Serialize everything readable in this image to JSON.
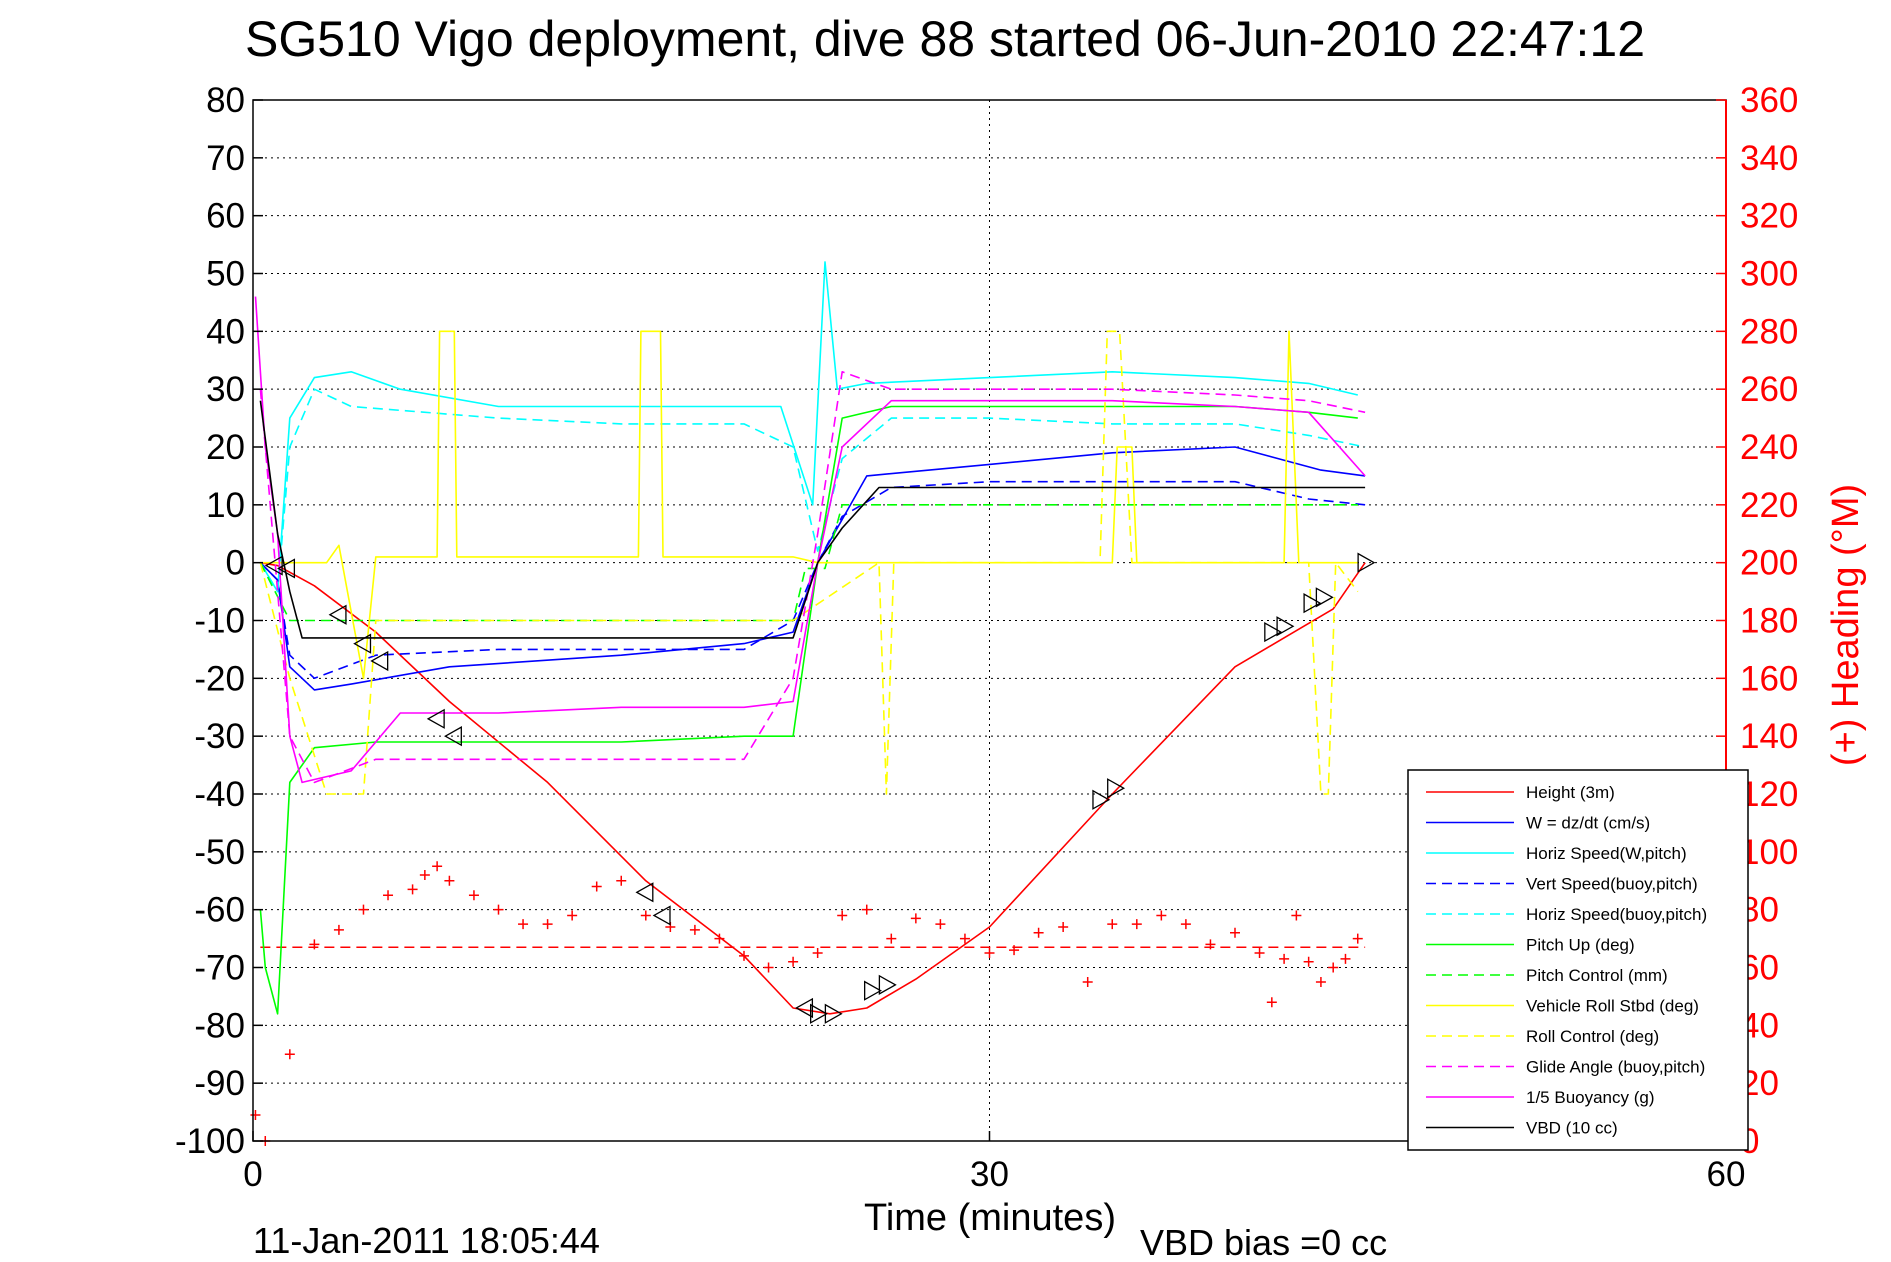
{
  "chart_data": {
    "type": "line",
    "title": "SG510 Vigo deployment, dive 88 started 06-Jun-2010 22:47:12",
    "xlabel": "Time (minutes)",
    "ylabel": "",
    "ylabel_right": "(+) Heading (°M)",
    "xlim": [
      0,
      60
    ],
    "ylim": [
      -100,
      80
    ],
    "ylim_right": [
      0,
      360
    ],
    "x_ticks": [
      "0",
      "30",
      "60"
    ],
    "y_ticks": [
      "80",
      "70",
      "60",
      "50",
      "40",
      "30",
      "20",
      "10",
      "0",
      "-10",
      "-20",
      "-30",
      "-40",
      "-50",
      "-60",
      "-70",
      "-80",
      "-90",
      "-100"
    ],
    "y_ticks_right": [
      "360",
      "340",
      "320",
      "300",
      "280",
      "260",
      "240",
      "220",
      "200",
      "180",
      "160",
      "140",
      "120",
      "100",
      "80",
      "60",
      "40",
      "20",
      "0"
    ],
    "grid": true,
    "legend_position": "bottom-right",
    "footer_left": "11-Jan-2011 18:05:44",
    "footer_right": "VBD bias =0 cc",
    "series": [
      {
        "name": "Height (3m)",
        "color": "#ff0000",
        "dash": "solid",
        "x": [
          0.3,
          1.0,
          2.5,
          5.0,
          8.0,
          12.0,
          16.0,
          20.0,
          22.0,
          23.5,
          25.0,
          27.0,
          30.0,
          35.0,
          40.0,
          44.0,
          45.3
        ],
        "y": [
          0,
          -0.5,
          -4,
          -12,
          -24,
          -38,
          -55,
          -68,
          -77,
          -78,
          -77,
          -72,
          -63,
          -40,
          -18,
          -8,
          0
        ]
      },
      {
        "name": "W = dz/dt (cm/s)",
        "color": "#0000ff",
        "dash": "solid",
        "x": [
          0.3,
          1.0,
          1.5,
          2.5,
          4.0,
          8.0,
          15.0,
          20.0,
          22.0,
          23.0,
          25.0,
          30.0,
          35.0,
          40.0,
          43.5,
          45.3
        ],
        "y": [
          0,
          -3,
          -18,
          -22,
          -21,
          -18,
          -16,
          -14,
          -12,
          0,
          15,
          17,
          19,
          20,
          16,
          15
        ]
      },
      {
        "name": "Horiz Speed(W,pitch)",
        "color": "#00ffff",
        "dash": "solid",
        "x": [
          0.3,
          1.0,
          1.5,
          2.5,
          4.0,
          6.0,
          10.0,
          15.0,
          20.0,
          21.5,
          22.8,
          23.3,
          23.8,
          25.0,
          30.0,
          35.0,
          40.0,
          43.0,
          45.0
        ],
        "y": [
          0,
          -5,
          25,
          32,
          33,
          30,
          27,
          27,
          27,
          27,
          10,
          52,
          30,
          31,
          32,
          33,
          32,
          31,
          29
        ]
      },
      {
        "name": "Vert Speed(buoy,pitch)",
        "color": "#0000ff",
        "dash": "dashed",
        "x": [
          0.3,
          1.0,
          1.5,
          2.5,
          5.0,
          10.0,
          15.0,
          20.0,
          22.0,
          23.0,
          24.0,
          26.0,
          30.0,
          35.0,
          40.0,
          43.0,
          45.3
        ],
        "y": [
          0,
          -3,
          -16,
          -20,
          -16,
          -15,
          -15,
          -15,
          -10,
          0,
          8,
          13,
          14,
          14,
          14,
          11,
          10
        ]
      },
      {
        "name": "Horiz Speed(buoy,pitch)",
        "color": "#00ffff",
        "dash": "dashed",
        "x": [
          0.3,
          1.0,
          1.5,
          2.5,
          4.0,
          10.0,
          15.0,
          20.0,
          22.0,
          23.0,
          24.0,
          26.0,
          30.0,
          35.0,
          40.0,
          43.0,
          45.3
        ],
        "y": [
          0,
          -5,
          20,
          30,
          27,
          25,
          24,
          24,
          20,
          2,
          18,
          25,
          25,
          24,
          24,
          22,
          20
        ]
      },
      {
        "name": "Pitch Up (deg)",
        "color": "#00ff00",
        "dash": "solid",
        "x": [
          0.3,
          0.5,
          1.0,
          1.5,
          2.5,
          5.0,
          10.0,
          15.0,
          20.0,
          22.0,
          23.0,
          24.0,
          26.0,
          30.0,
          35.0,
          40.0,
          43.0,
          45.0
        ],
        "y": [
          -60,
          -70,
          -78,
          -38,
          -32,
          -31,
          -31,
          -31,
          -30,
          -30,
          0,
          25,
          27,
          27,
          27,
          27,
          26,
          25
        ]
      },
      {
        "name": "Pitch Control (mm)",
        "color": "#00ff00",
        "dash": "dashed",
        "x": [
          0.3,
          1.5,
          2.5,
          10.0,
          22.0,
          22.5,
          23.3,
          24.0,
          26.0,
          40.0,
          43.0,
          45.0
        ],
        "y": [
          0,
          -10,
          -10,
          -10,
          -10,
          -1,
          -1,
          10,
          10,
          10,
          10,
          10
        ]
      },
      {
        "name": "Vehicle Roll Stbd (deg)",
        "color": "#ffff00",
        "dash": "solid",
        "x": [
          0.3,
          3.0,
          3.5,
          4.5,
          5.0,
          7.5,
          7.6,
          8.2,
          8.3,
          15.7,
          15.8,
          16.6,
          16.7,
          22.0,
          23.0,
          24.0,
          25.0,
          35.0,
          35.2,
          35.8,
          36.0,
          42.0,
          42.2,
          42.6,
          43.0,
          45.0
        ],
        "y": [
          0,
          0,
          3,
          -20,
          1,
          1,
          40,
          40,
          1,
          1,
          40,
          40,
          1,
          1,
          0,
          0,
          0,
          0,
          20,
          20,
          0,
          0,
          40,
          0,
          0,
          0
        ]
      },
      {
        "name": "Roll Control (deg)",
        "color": "#ffff00",
        "dash": "dashed",
        "x": [
          0.3,
          1.5,
          3.0,
          4.5,
          5.0,
          22.0,
          25.5,
          25.8,
          26.1,
          34.5,
          34.8,
          35.3,
          35.8,
          43.0,
          43.5,
          43.8,
          44.1,
          45.0
        ],
        "y": [
          0,
          -20,
          -40,
          -40,
          -10,
          -10,
          0,
          -40,
          0,
          0,
          40,
          40,
          0,
          0,
          -40,
          -40,
          0,
          -5
        ]
      },
      {
        "name": "Glide Angle (buoy,pitch)",
        "color": "#ff00ff",
        "dash": "dashed",
        "x": [
          0.3,
          1.0,
          1.5,
          2.5,
          5.0,
          10.0,
          15.0,
          20.0,
          22.0,
          23.0,
          24.0,
          26.0,
          30.0,
          35.0,
          40.0,
          43.0,
          45.3
        ],
        "y": [
          30,
          -5,
          -30,
          -38,
          -34,
          -34,
          -34,
          -34,
          -20,
          5,
          33,
          30,
          30,
          30,
          29,
          28,
          26
        ]
      },
      {
        "name": "1/5 Buoyancy (g)",
        "color": "#ff00ff",
        "dash": "solid",
        "x": [
          0.1,
          0.5,
          1.0,
          1.5,
          2.0,
          4.0,
          6.0,
          10.0,
          15.0,
          20.0,
          22.0,
          23.0,
          24.0,
          26.0,
          30.0,
          35.0,
          40.0,
          43.0,
          45.3
        ],
        "y": [
          46,
          20,
          5,
          -30,
          -38,
          -36,
          -26,
          -26,
          -25,
          -25,
          -24,
          0,
          20,
          28,
          28,
          28,
          27,
          26,
          15
        ]
      },
      {
        "name": "VBD (10 cc)",
        "color": "#000000",
        "dash": "solid",
        "x": [
          0.3,
          1.0,
          1.5,
          2.0,
          5.0,
          10.0,
          15.0,
          20.0,
          22.0,
          23.0,
          24.0,
          25.5,
          30.0,
          35.0,
          40.0,
          45.3
        ],
        "y": [
          28,
          5,
          -5,
          -13,
          -13,
          -13,
          -13,
          -13,
          -13,
          0,
          6,
          13,
          13,
          13,
          13,
          13
        ]
      }
    ],
    "heading_points": {
      "name": "heading",
      "color": "#ff0000",
      "marker": "+",
      "mean_heading": 67,
      "x": [
        0.1,
        0.5,
        1.5,
        2.5,
        3.5,
        4.5,
        5.5,
        6.5,
        7.0,
        7.5,
        8.0,
        9.0,
        10.0,
        11.0,
        12.0,
        13.0,
        14.0,
        15.0,
        16.0,
        17.0,
        18.0,
        19.0,
        20.0,
        21.0,
        22.0,
        23.0,
        24.0,
        25.0,
        26.0,
        27.0,
        28.0,
        29.0,
        30.0,
        31.0,
        32.0,
        33.0,
        34.0,
        35.0,
        36.0,
        37.0,
        38.0,
        39.0,
        40.0,
        41.0,
        41.5,
        42.0,
        42.5,
        43.0,
        43.5,
        44.0,
        44.5,
        45.0
      ],
      "y": [
        9,
        0,
        30,
        68,
        73,
        80,
        85,
        87,
        92,
        95,
        90,
        85,
        80,
        75,
        75,
        78,
        88,
        90,
        78,
        74,
        73,
        70,
        64,
        60,
        62,
        65,
        78,
        80,
        70,
        77,
        75,
        70,
        65,
        66,
        72,
        74,
        55,
        75,
        75,
        78,
        75,
        68,
        72,
        65,
        48,
        63,
        78,
        62,
        55,
        60,
        63,
        70
      ]
    },
    "markers": {
      "symbol": "triangle",
      "color": "#000000",
      "x": [
        0.9,
        1.4,
        3.5,
        4.5,
        5.2,
        7.5,
        8.2,
        16.0,
        16.7,
        22.5,
        23.0,
        23.6,
        25.2,
        25.8,
        34.5,
        35.1,
        41.5,
        42.0,
        43.1,
        43.6,
        45.3
      ],
      "y": [
        -0.5,
        -1,
        -9,
        -14,
        -17,
        -27,
        -30,
        -57,
        -61,
        -77,
        -78,
        -78,
        -74,
        -73,
        -41,
        -39,
        -12,
        -11,
        -7,
        -6,
        0
      ]
    }
  }
}
